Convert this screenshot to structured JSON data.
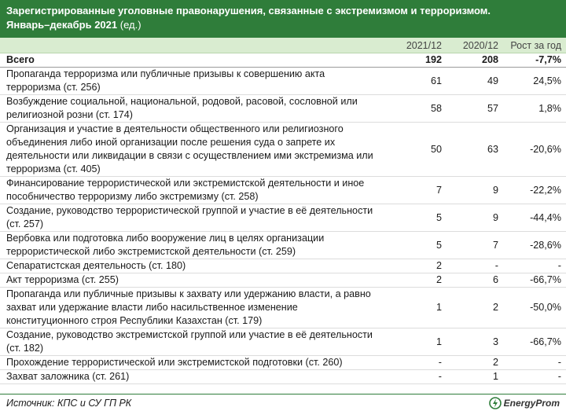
{
  "header": {
    "title": "Зарегистрированные уголовные правонарушения, связанные с экстремизмом и терроризмом.",
    "period": "Январь–декабрь 2021",
    "unit": "(ед.)"
  },
  "columns": [
    "2021/12",
    "2020/12",
    "Рост за год"
  ],
  "rows": [
    {
      "label": "Всего",
      "v2021": "192",
      "v2020": "208",
      "growth": "-7,7%"
    },
    {
      "label": "Пропаганда терроризма или публичные призывы к совершению акта терроризма (ст. 256)",
      "v2021": "61",
      "v2020": "49",
      "growth": "24,5%"
    },
    {
      "label": "Возбуждение социальной, национальной, родовой, расовой, сословной или религиозной розни (ст. 174)",
      "v2021": "58",
      "v2020": "57",
      "growth": "1,8%"
    },
    {
      "label": "Организация и участие в деятельности общественного или религиозного объединения либо иной организации после решения суда о запрете их деятельности или ликвидации в связи с осуществлением ими экстремизма или терроризма (ст. 405)",
      "v2021": "50",
      "v2020": "63",
      "growth": "-20,6%"
    },
    {
      "label": "Финансирование террористической или экстремистской деятельности и иное пособничество терроризму либо экстремизму (ст. 258)",
      "v2021": "7",
      "v2020": "9",
      "growth": "-22,2%"
    },
    {
      "label": "Создание, руководство террористической группой и участие в её деятельности (ст. 257)",
      "v2021": "5",
      "v2020": "9",
      "growth": "-44,4%"
    },
    {
      "label": "Вербовка или подготовка либо вооружение лиц в целях организации террористической либо экстремистской деятельности (ст. 259)",
      "v2021": "5",
      "v2020": "7",
      "growth": "-28,6%"
    },
    {
      "label": "Сепаратистская деятельность (ст. 180)",
      "v2021": "2",
      "v2020": "-",
      "growth": "-"
    },
    {
      "label": "Акт терроризма (ст. 255)",
      "v2021": "2",
      "v2020": "6",
      "growth": "-66,7%"
    },
    {
      "label": "Пропаганда или публичные призывы к захвату или удержанию власти, а равно захват или удержание власти либо насильственное изменение конституционного строя Республики Казахстан (ст. 179)",
      "v2021": "1",
      "v2020": "2",
      "growth": "-50,0%"
    },
    {
      "label": "Создание, руководство экстремистской группой или участие в её деятельности (ст. 182)",
      "v2021": "1",
      "v2020": "3",
      "growth": "-66,7%"
    },
    {
      "label": "Прохождение террористической или экстремистской подготовки (ст. 260)",
      "v2021": "-",
      "v2020": "2",
      "growth": "-"
    },
    {
      "label": "Захват заложника (ст. 261)",
      "v2021": "-",
      "v2020": "1",
      "growth": "-"
    }
  ],
  "footer": {
    "source": "Источник: КПС и СУ ГП РК",
    "logo_text": "EnergyProm",
    "logo_icon": "energyprom-logo-icon",
    "brand_color": "#2f7d3a"
  }
}
